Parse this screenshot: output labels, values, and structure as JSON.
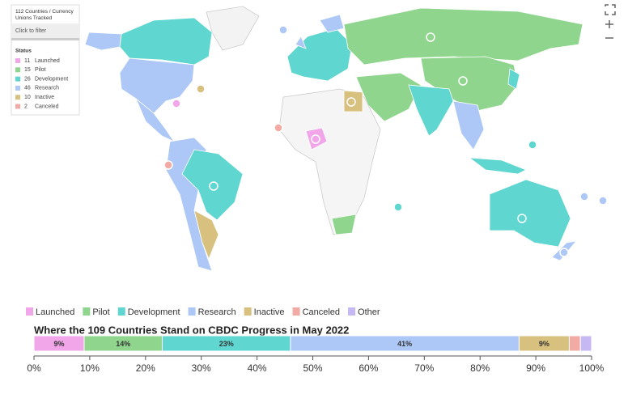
{
  "map_panel": {
    "title": "112 Countries / Currency Unions Tracked",
    "filter": "Click to filter",
    "status_heading": "Status",
    "rows": [
      {
        "count": 11,
        "label": "Launched",
        "color": "#f0a6e8"
      },
      {
        "count": 15,
        "label": "Pilot",
        "color": "#90d58e"
      },
      {
        "count": 26,
        "label": "Development",
        "color": "#5fd6d0"
      },
      {
        "count": 46,
        "label": "Research",
        "color": "#adc8f6"
      },
      {
        "count": 10,
        "label": "Inactive",
        "color": "#d8c07e"
      },
      {
        "count": 2,
        "label": "Canceled",
        "color": "#f2aaa4"
      }
    ]
  },
  "chart_data": {
    "type": "stacked_bar",
    "title": "Where the 109 Countries Stand on CBDC Progress in May 2022",
    "series": [
      {
        "name": "Launched",
        "color": "#f0a6e8",
        "values": [
          9
        ],
        "value_labels": [
          "9%"
        ]
      },
      {
        "name": "Pilot",
        "color": "#90d58e",
        "values": [
          14
        ],
        "value_labels": [
          "14%"
        ]
      },
      {
        "name": "Development",
        "color": "#5fd6d0",
        "values": [
          23
        ],
        "value_labels": [
          "23%"
        ]
      },
      {
        "name": "Research",
        "color": "#adc8f6",
        "values": [
          41
        ],
        "value_labels": [
          "41%"
        ]
      },
      {
        "name": "Inactive",
        "color": "#d8c07e",
        "values": [
          9
        ],
        "value_labels": [
          "9%"
        ]
      },
      {
        "name": "Canceled",
        "color": "#f2aaa4",
        "values": [
          2
        ],
        "value_labels": [
          null
        ]
      },
      {
        "name": "Other",
        "color": "#c6b8f2",
        "values": [
          2
        ],
        "value_labels": [
          null
        ]
      }
    ],
    "xlim": [
      0,
      100
    ],
    "xticks": [
      {
        "value": 0,
        "label": "0%"
      },
      {
        "value": 10,
        "label": "10%"
      },
      {
        "value": 20,
        "label": "20%"
      },
      {
        "value": 30,
        "label": "30%"
      },
      {
        "value": 40,
        "label": "40%"
      },
      {
        "value": 50,
        "label": "50%"
      },
      {
        "value": 60,
        "label": "60%"
      },
      {
        "value": 70,
        "label": "70%"
      },
      {
        "value": 80,
        "label": "80%"
      },
      {
        "value": 90,
        "label": "90%"
      },
      {
        "value": 100,
        "label": "100%"
      }
    ]
  }
}
